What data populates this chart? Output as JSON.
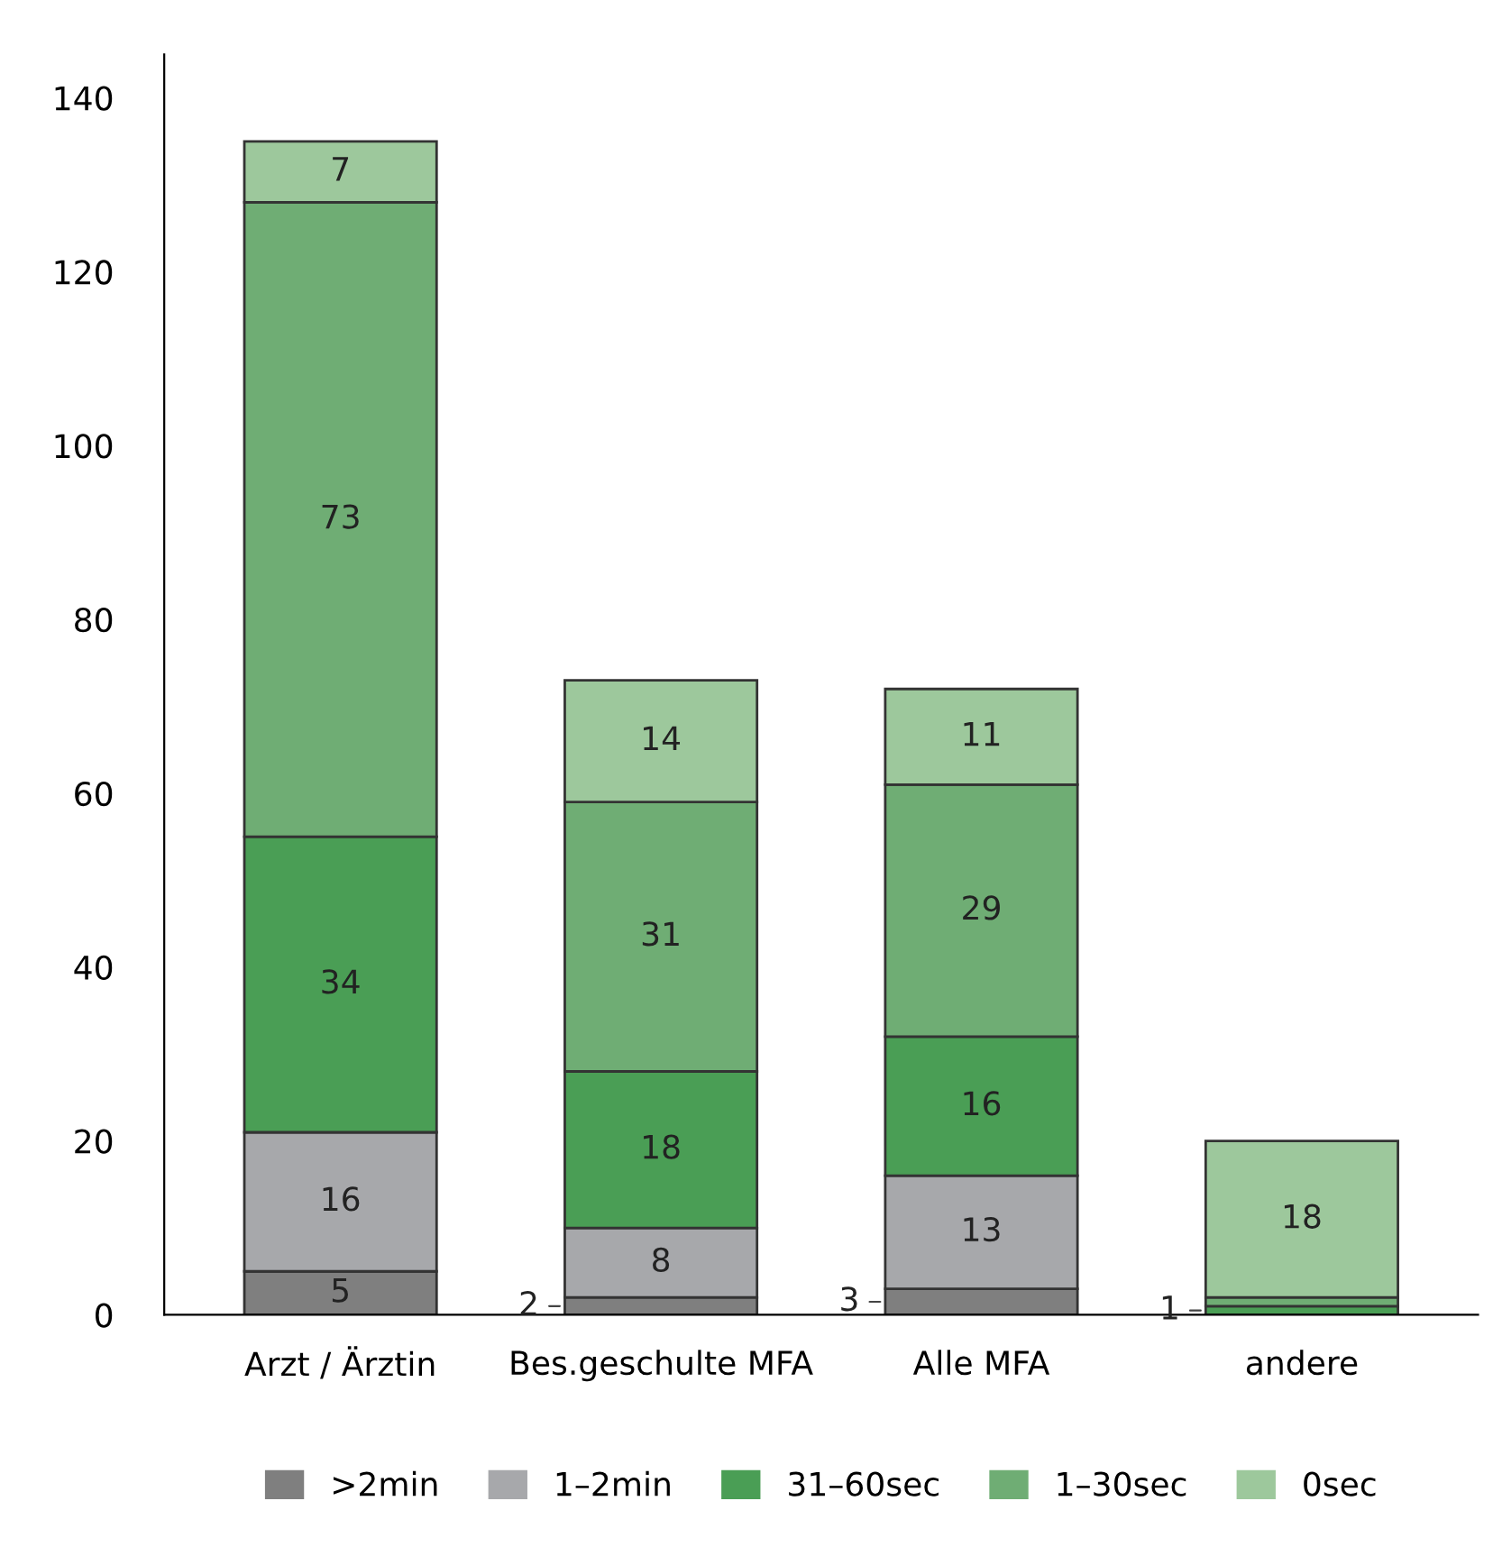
{
  "chart_data": {
    "type": "bar",
    "stacked": true,
    "categories": [
      "Arzt / Ärztin",
      "Bes.geschulte MFA",
      "Alle MFA",
      "andere"
    ],
    "series": [
      {
        "name": ">2min",
        "color": "#7f7f7f",
        "values": [
          5,
          2,
          3,
          0
        ],
        "value_labels": [
          "5",
          "2",
          "3",
          null
        ]
      },
      {
        "name": "1–2min",
        "color": "#a7a8ab",
        "values": [
          16,
          8,
          13,
          0
        ],
        "value_labels": [
          "16",
          "8",
          "13",
          null
        ]
      },
      {
        "name": "31–60sec",
        "color": "#4a9e55",
        "values": [
          34,
          18,
          16,
          1
        ],
        "value_labels": [
          "34",
          "18",
          "16",
          "1"
        ]
      },
      {
        "name": "1–30sec",
        "color": "#6fad74",
        "values": [
          73,
          31,
          29,
          1
        ],
        "value_labels": [
          "73",
          "31",
          "29",
          null
        ]
      },
      {
        "name": "0sec",
        "color": "#9dc89c",
        "values": [
          7,
          14,
          11,
          18
        ],
        "value_labels": [
          "7",
          "14",
          "11",
          "18"
        ]
      }
    ],
    "ylim": [
      0,
      145
    ],
    "yticks": [
      0,
      20,
      40,
      60,
      80,
      100,
      120,
      140
    ],
    "grid": false,
    "legend": "bottom"
  }
}
